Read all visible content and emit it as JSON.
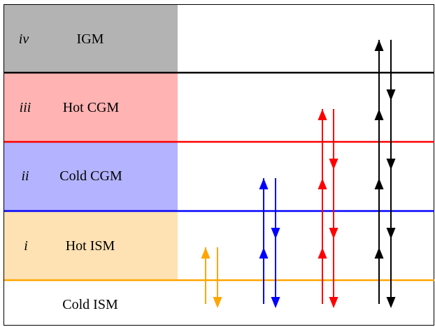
{
  "layers": [
    {
      "key": "igm",
      "numeral": "iv",
      "label": "IGM",
      "fill": "#b3b3b3",
      "boundary_color": "#000000"
    },
    {
      "key": "hot-cgm",
      "numeral": "iii",
      "label": "Hot CGM",
      "fill": "#ffb3b3",
      "boundary_color": "#ff0000"
    },
    {
      "key": "cold-cgm",
      "numeral": "ii",
      "label": "Cold CGM",
      "fill": "#b3b3ff",
      "boundary_color": "#0000ff"
    },
    {
      "key": "hot-ism",
      "numeral": "i",
      "label": "Hot ISM",
      "fill": "#ffe2b3",
      "boundary_color": "#ffa500"
    },
    {
      "key": "cold-ism",
      "numeral": "",
      "label": "Cold ISM",
      "fill": "#ffffff",
      "boundary_color": ""
    }
  ],
  "flows": [
    {
      "key": "orange",
      "color": "#ffa500",
      "top_layer": "hot-ism"
    },
    {
      "key": "blue",
      "color": "#0000ff",
      "top_layer": "cold-cgm"
    },
    {
      "key": "red",
      "color": "#ff0000",
      "top_layer": "hot-cgm"
    },
    {
      "key": "black",
      "color": "#000000",
      "top_layer": "igm"
    }
  ]
}
